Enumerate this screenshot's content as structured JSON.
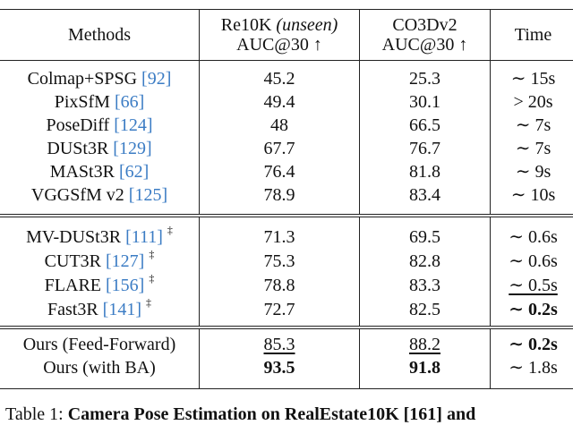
{
  "header": {
    "methods": "Methods",
    "re10k": "Re10K",
    "re10k_note": "(unseen)",
    "re10k_metric": "AUC@30 ↑",
    "co3d": "CO3Dv2",
    "co3d_metric": "AUC@30 ↑",
    "time": "Time"
  },
  "rows": [
    {
      "method": "Colmap+SPSG",
      "cite": "[92]",
      "re10k": 45.2,
      "co3d": 25.3,
      "time": "∼ 15s"
    },
    {
      "method": "PixSfM",
      "cite": "[66]",
      "re10k": 49.4,
      "co3d": 30.1,
      "time": "> 20s"
    },
    {
      "method": "PoseDiff",
      "cite": "[124]",
      "re10k": 48.0,
      "co3d": 66.5,
      "time": "∼ 7s"
    },
    {
      "method": "DUSt3R",
      "cite": "[129]",
      "re10k": 67.7,
      "co3d": 76.7,
      "time": "∼ 7s"
    },
    {
      "method": "MASt3R",
      "cite": "[62]",
      "re10k": 76.4,
      "co3d": 81.8,
      "time": "∼ 9s"
    },
    {
      "method": "VGGSfM v2",
      "cite": "[125]",
      "re10k": 78.9,
      "co3d": 83.4,
      "time": "∼ 10s"
    },
    {
      "method": "MV-DUSt3R",
      "cite": "[111]",
      "mark": "‡",
      "re10k": 71.3,
      "co3d": 69.5,
      "time": "∼ 0.6s"
    },
    {
      "method": "CUT3R",
      "cite": "[127]",
      "mark": "‡",
      "re10k": 75.3,
      "co3d": 82.8,
      "time": "∼ 0.6s"
    },
    {
      "method": "FLARE",
      "cite": "[156]",
      "mark": "‡",
      "re10k": 78.8,
      "co3d": 83.3,
      "time": "∼ 0.5s"
    },
    {
      "method": "Fast3R",
      "cite": "[141]",
      "mark": "‡",
      "re10k": 72.7,
      "co3d": 82.5,
      "time": "∼ 0.2s"
    },
    {
      "method": "Ours (Feed-Forward)",
      "re10k": 85.3,
      "co3d": 88.2,
      "time": "∼ 0.2s"
    },
    {
      "method": "Ours (with BA)",
      "re10k": 93.5,
      "co3d": 91.8,
      "time": "∼ 1.8s"
    }
  ],
  "caption": {
    "label": "Table 1:",
    "text": "Camera Pose Estimation on RealEstate10K [161] and"
  }
}
